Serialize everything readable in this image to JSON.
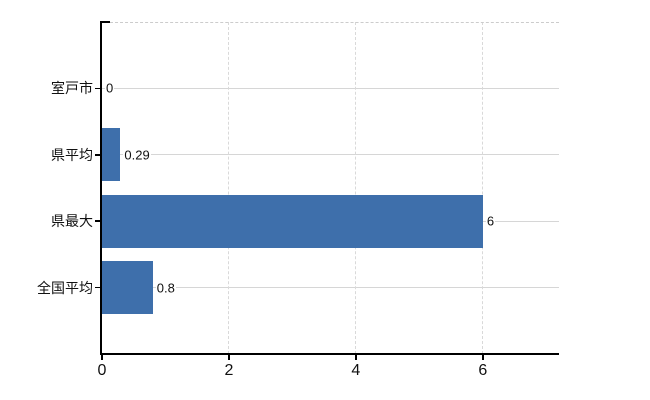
{
  "chart_data": {
    "type": "bar",
    "orientation": "horizontal",
    "title": "",
    "categories": [
      "室戸市",
      "県平均",
      "県最大",
      "全国平均"
    ],
    "values": [
      0,
      0.29,
      6,
      0.8
    ],
    "value_labels": [
      "0",
      "0.29",
      "6",
      "0.8"
    ],
    "x_ticks": [
      0,
      2,
      4,
      6
    ],
    "x_tick_labels": [
      "0",
      "2",
      "4",
      "6"
    ],
    "xlim": [
      0,
      7.2
    ],
    "grid": true,
    "legend_position": "none",
    "colors": {
      "bar": "#3e6fab",
      "axis": "#000000",
      "grid_h": "#d6d6d6",
      "grid_v": "#d9d9d9",
      "top_border": "#cccccc",
      "text": "#111111",
      "background": "#ffffff"
    }
  }
}
